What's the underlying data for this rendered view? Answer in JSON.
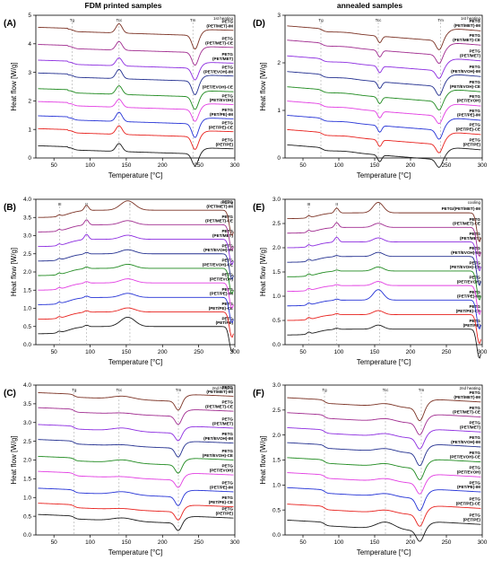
{
  "columns": [
    {
      "title": "FDM printed samples"
    },
    {
      "title": "annealed samples"
    }
  ],
  "colors": [
    "#1a1a1a",
    "#e8211d",
    "#2432d6",
    "#e23ee2",
    "#1f8a1f",
    "#222f8f",
    "#8c2ce0",
    "#a02b8f",
    "#7b3224"
  ],
  "chart_data": [
    {
      "id": "A",
      "type": "line",
      "panel_label": "(A)",
      "annotation": "1st heating",
      "xlabel": "Temperature [°C]",
      "ylabel": "Heat flow [W/g]",
      "xlim": [
        25,
        300
      ],
      "ylim": [
        0,
        5
      ],
      "xticks": [
        50,
        100,
        150,
        200,
        250,
        300
      ],
      "yticks": [
        0,
        1,
        2,
        3,
        4,
        5
      ],
      "transitions": [
        {
          "label": "Tg",
          "x": 75
        },
        {
          "label": "Tcc",
          "x": 140
        },
        {
          "label": "Tm",
          "x": 242
        }
      ],
      "curves": [
        {
          "name": "PETG\n(PET/PE)",
          "offset": 0.4
        },
        {
          "name": "PETG\n(PET/PE)-CE",
          "offset": 1.0
        },
        {
          "name": "PETG\n(PET/PE)-IM",
          "offset": 1.45
        },
        {
          "name": "PETG\n(PET/EVOH)",
          "offset": 1.95
        },
        {
          "name": "(PET/EVOH)-CE",
          "offset": 2.4
        },
        {
          "name": "PETG\n(PET/EVOH)-IM",
          "offset": 2.95
        },
        {
          "name": "PETG\n(PET/MET)",
          "offset": 3.4
        },
        {
          "name": "PETG\n(PET/MET)-CE",
          "offset": 3.95
        },
        {
          "name": "PETG\n(PET/MET)-IM",
          "offset": 4.55
        }
      ]
    },
    {
      "id": "B",
      "type": "line",
      "panel_label": "(B)",
      "annotation": "cooling",
      "xlabel": "Temperature [°C]",
      "ylabel": "Heat flow [W/g]",
      "xlim": [
        25,
        300
      ],
      "ylim": [
        0,
        4
      ],
      "xticks": [
        50,
        100,
        150,
        200,
        250,
        300
      ],
      "yticks": [
        0.0,
        0.5,
        1.0,
        1.5,
        2.0,
        2.5,
        3.0,
        3.5,
        4.0
      ],
      "transitions": [
        {
          "label": "III",
          "x": 58
        },
        {
          "label": "II",
          "x": 95
        },
        {
          "label": "I",
          "x": 155
        }
      ],
      "curves": [
        {
          "name": "PETG\n(PET/PE)",
          "offset": 0.3
        },
        {
          "name": "PETG\n(PET/PE)-CE",
          "offset": 0.7
        },
        {
          "name": "PETG\n(PET/PE)-IM",
          "offset": 1.1
        },
        {
          "name": "PETG\n(PET/EVOH)",
          "offset": 1.5
        },
        {
          "name": "PETG\n(PET/EVOH)-CE",
          "offset": 1.9
        },
        {
          "name": "PETG\n(PET/EVOH)-IM",
          "offset": 2.3
        },
        {
          "name": "PETG\n(PET/MET)",
          "offset": 2.7
        },
        {
          "name": "PETG\n(PET/MET)-CE",
          "offset": 3.1
        },
        {
          "name": "PETG\n(PET/MET)-IM",
          "offset": 3.5
        }
      ]
    },
    {
      "id": "C",
      "type": "line",
      "panel_label": "(C)",
      "annotation": "2nd heating",
      "xlabel": "Temperature [°C]",
      "ylabel": "Heat flow [W/g]",
      "xlim": [
        25,
        300
      ],
      "ylim": [
        0,
        4
      ],
      "xticks": [
        50,
        100,
        150,
        200,
        250,
        300
      ],
      "yticks": [
        0.0,
        0.5,
        1.0,
        1.5,
        2.0,
        2.5,
        3.0,
        3.5,
        4.0
      ],
      "transitions": [
        {
          "label": "Tg",
          "x": 78
        },
        {
          "label": "Tcc",
          "x": 140
        },
        {
          "label": "Tm",
          "x": 222
        }
      ],
      "curves": [
        {
          "name": "PETG\n(PET/PE)",
          "offset": 0.55
        },
        {
          "name": "PETG\n(PET/PE)-CE",
          "offset": 0.85
        },
        {
          "name": "PETG\n(PET/PE)-IM",
          "offset": 1.25
        },
        {
          "name": "PETG\n(PET/EVOH)",
          "offset": 1.7
        },
        {
          "name": "PETG\n(PET/EVOH)-CE",
          "offset": 2.1
        },
        {
          "name": "PETG\n(PET/EVOH)-IM",
          "offset": 2.55
        },
        {
          "name": "PETG\n(PET/MET)",
          "offset": 2.95
        },
        {
          "name": "PETG\n(PET/MET)-CE",
          "offset": 3.4
        },
        {
          "name": "PETG\n(PET/MET)-IM",
          "offset": 3.8
        }
      ]
    },
    {
      "id": "D",
      "type": "line",
      "panel_label": "(D)",
      "annotation": "1st heating",
      "xlabel": "Temperature [°C]",
      "ylabel": "Heat flow [W/g]",
      "xlim": [
        25,
        300
      ],
      "ylim": [
        0,
        3
      ],
      "xticks": [
        50,
        100,
        150,
        200,
        250,
        300
      ],
      "yticks": [
        0,
        1,
        2,
        3
      ],
      "transitions": [
        {
          "label": "Tg",
          "x": 75
        },
        {
          "label": "Tcc",
          "x": 155
        },
        {
          "label": "Tm",
          "x": 242
        }
      ],
      "curves": [
        {
          "name": "PETG\n(PET/PE)",
          "offset": 0.28
        },
        {
          "name": "PETG\n(PET/PE)-CE",
          "offset": 0.6
        },
        {
          "name": "PETG\n(PET/PE)-IM",
          "offset": 0.9
        },
        {
          "name": "PETG\n(PET/EVOH)",
          "offset": 1.2
        },
        {
          "name": "PETG\n(PET/EVOH)-CE",
          "offset": 1.5
        },
        {
          "name": "PETG\n(PET/EVOH)-IM",
          "offset": 1.82
        },
        {
          "name": "PETG\n(PET/MET)",
          "offset": 2.15
        },
        {
          "name": "PETG\n(PET/MET)-CE",
          "offset": 2.48
        },
        {
          "name": "PETG\n(PET/MET)-IM",
          "offset": 2.78
        }
      ]
    },
    {
      "id": "E",
      "type": "line",
      "panel_label": "(E)",
      "annotation": "cooling",
      "xlabel": "Temperature [°C]",
      "ylabel": "Heat flow [W/g]",
      "xlim": [
        25,
        300
      ],
      "ylim": [
        0,
        3
      ],
      "xticks": [
        50,
        100,
        150,
        200,
        250,
        300
      ],
      "yticks": [
        0.0,
        0.5,
        1.0,
        1.5,
        2.0,
        2.5,
        3.0
      ],
      "transitions": [
        {
          "label": "III",
          "x": 58
        },
        {
          "label": "II",
          "x": 97
        },
        {
          "label": "I",
          "x": 157
        }
      ],
      "curves": [
        {
          "name": "PETG\n(PET/PE)",
          "offset": 0.2
        },
        {
          "name": "PETG\n(PET/PE)-CE",
          "offset": 0.5
        },
        {
          "name": "PETG\n(PET/PE)-IM",
          "offset": 0.8
        },
        {
          "name": "PETG\n(PET/EVOH)",
          "offset": 1.1
        },
        {
          "name": "PETG\n(PET/EVOH)-CE",
          "offset": 1.4
        },
        {
          "name": "PETG\n(PET/EVOH)-IM",
          "offset": 1.7
        },
        {
          "name": "PETG\n(PET/MET)",
          "offset": 2.0
        },
        {
          "name": "PETG\n(PET/MET)-CE",
          "offset": 2.3
        },
        {
          "name": "PETG/(PET/MET)-IM",
          "offset": 2.6
        }
      ]
    },
    {
      "id": "F",
      "type": "line",
      "panel_label": "(F)",
      "annotation": "2nd heating",
      "xlabel": "Temperature [°C]",
      "ylabel": "Heat flow [W/g]",
      "xlim": [
        25,
        300
      ],
      "ylim": [
        0,
        3
      ],
      "xticks": [
        50,
        100,
        150,
        200,
        250,
        300
      ],
      "yticks": [
        0.0,
        0.5,
        1.0,
        1.5,
        2.0,
        2.5,
        3.0
      ],
      "transitions": [
        {
          "label": "Tg",
          "x": 80
        },
        {
          "label": "Tcc",
          "x": 165
        },
        {
          "label": "Tm",
          "x": 215
        }
      ],
      "curves": [
        {
          "name": "PETG\n(PET/PE)",
          "offset": 0.3
        },
        {
          "name": "PETG\n(PET/PE)-CE",
          "offset": 0.62
        },
        {
          "name": "PETG\n(PET/PE)-IM",
          "offset": 0.95
        },
        {
          "name": "PETG\n(PET/EVOH)",
          "offset": 1.25
        },
        {
          "name": "PETG\n(PET/EVOH)-CE",
          "offset": 1.55
        },
        {
          "name": "PETG\n(PET/EVOH)-IM",
          "offset": 1.85
        },
        {
          "name": "PETG\n(PET/MET)",
          "offset": 2.15
        },
        {
          "name": "PETG\n(PET/MET)-CE",
          "offset": 2.45
        },
        {
          "name": "PETG\n(PET/MET)-IM",
          "offset": 2.75
        }
      ]
    }
  ]
}
